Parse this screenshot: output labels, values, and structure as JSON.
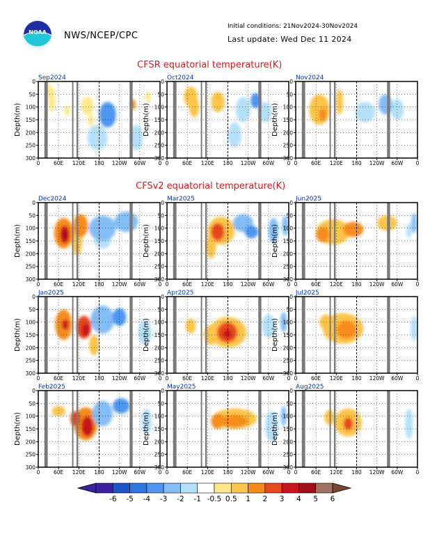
{
  "header": {
    "org": "NWS/NCEP/CPC",
    "logo_text": "NOAA",
    "initial_conditions": "Initial conditions: 21Nov2024-30Nov2024",
    "last_update": "Last update: Wed Dec 11 2024"
  },
  "sections": [
    {
      "title": "CFSR equatorial temperature(K)"
    },
    {
      "title": "CFSv2 equatorial temperature(K)"
    }
  ],
  "colors": {
    "land_mask": "#7a7a7a",
    "title_red": "#d7191c",
    "panel_title_blue": "#0033cc"
  },
  "chart_data": {
    "type": "heatmap",
    "ylabel": "Depth(m)",
    "x_ticks": [
      "0",
      "60E",
      "120E",
      "180",
      "120W",
      "60W",
      "0"
    ],
    "y_ticks": [
      "0",
      "50",
      "100",
      "150",
      "200",
      "250",
      "300"
    ],
    "xlim_deg": [
      0,
      360
    ],
    "ylim": [
      300,
      0
    ],
    "grid": true,
    "dateline_dashed": true,
    "land_mask_lon_ranges": [
      [
        18,
        28
      ],
      [
        100,
        104
      ],
      [
        113,
        118
      ],
      [
        270,
        279
      ]
    ],
    "colorbar": {
      "labels": [
        "-6",
        "-5",
        "-4",
        "-3",
        "-2",
        "-1",
        "-0.5",
        "0.5",
        "1",
        "2",
        "3",
        "4",
        "5",
        "6"
      ],
      "colors": [
        "#3b1fa0",
        "#1c55c8",
        "#2f74e0",
        "#4d95ef",
        "#82bdf5",
        "#b4e0fa",
        "#ffffff",
        "#ffe88a",
        "#fcc44a",
        "#f58c1a",
        "#e8481c",
        "#c8141c",
        "#a0101a",
        "#a07060"
      ],
      "end_low": "#3b1fa0",
      "end_high": "#7a4630"
    },
    "panels": [
      {
        "label": "Sep2024",
        "blobs": [
          [
            30,
            35,
            8,
            30,
            0.5
          ],
          [
            40,
            70,
            10,
            50,
            0.5
          ],
          [
            85,
            115,
            8,
            20,
            0.5
          ],
          [
            145,
            95,
            18,
            35,
            0.5
          ],
          [
            155,
            150,
            8,
            25,
            0.5
          ],
          [
            205,
            130,
            25,
            50,
            -3
          ],
          [
            205,
            105,
            15,
            20,
            -2
          ],
          [
            175,
            220,
            30,
            50,
            -0.5
          ],
          [
            290,
            220,
            20,
            50,
            -0.5
          ],
          [
            280,
            90,
            8,
            20,
            2
          ],
          [
            325,
            60,
            8,
            20,
            0.5
          ]
        ]
      },
      {
        "label": "Oct2024",
        "blobs": [
          [
            70,
            60,
            20,
            40,
            1
          ],
          [
            80,
            100,
            15,
            40,
            1
          ],
          [
            150,
            80,
            20,
            40,
            1
          ],
          [
            225,
            110,
            22,
            50,
            -1
          ],
          [
            262,
            75,
            15,
            30,
            -3
          ],
          [
            290,
            120,
            20,
            40,
            -1
          ],
          [
            200,
            210,
            20,
            50,
            -0.5
          ]
        ]
      },
      {
        "label": "Nov2024",
        "blobs": [
          [
            70,
            110,
            30,
            60,
            1
          ],
          [
            80,
            130,
            12,
            25,
            2
          ],
          [
            130,
            80,
            10,
            50,
            1
          ],
          [
            205,
            120,
            30,
            40,
            -0.5
          ],
          [
            265,
            90,
            20,
            40,
            -2
          ],
          [
            300,
            110,
            20,
            40,
            -1
          ]
        ]
      },
      {
        "label": "Dec2024",
        "blobs": [
          [
            75,
            120,
            28,
            60,
            2
          ],
          [
            78,
            125,
            14,
            35,
            4
          ],
          [
            80,
            125,
            8,
            18,
            6
          ],
          [
            125,
            90,
            22,
            45,
            2
          ],
          [
            115,
            150,
            15,
            60,
            1
          ],
          [
            190,
            100,
            40,
            50,
            -2
          ],
          [
            260,
            75,
            35,
            40,
            -2
          ],
          [
            190,
            150,
            25,
            30,
            -1
          ]
        ]
      },
      {
        "label": "Mar2025",
        "blobs": [
          [
            160,
            110,
            40,
            55,
            1
          ],
          [
            150,
            115,
            20,
            35,
            3
          ],
          [
            130,
            170,
            15,
            50,
            1
          ],
          [
            225,
            80,
            30,
            35,
            -2
          ],
          [
            250,
            115,
            20,
            25,
            -3
          ],
          [
            315,
            110,
            15,
            50,
            -2
          ],
          [
            350,
            90,
            10,
            40,
            -2
          ]
        ]
      },
      {
        "label": "Jun2025",
        "blobs": [
          [
            110,
            115,
            50,
            50,
            1
          ],
          [
            170,
            105,
            30,
            30,
            2
          ],
          [
            80,
            125,
            20,
            30,
            2
          ],
          [
            270,
            80,
            30,
            30,
            1
          ],
          [
            350,
            80,
            8,
            40,
            -2
          ],
          [
            335,
            110,
            8,
            30,
            -1
          ]
        ]
      },
      {
        "label": "Jan2025",
        "blobs": [
          [
            75,
            110,
            25,
            60,
            2
          ],
          [
            80,
            110,
            10,
            20,
            4
          ],
          [
            135,
            120,
            22,
            45,
            3
          ],
          [
            140,
            130,
            12,
            25,
            4
          ],
          [
            165,
            190,
            15,
            40,
            1
          ],
          [
            190,
            90,
            35,
            55,
            -2
          ],
          [
            240,
            80,
            20,
            35,
            -3
          ],
          [
            315,
            140,
            20,
            50,
            -1
          ]
        ]
      },
      {
        "label": "Apr2025",
        "blobs": [
          [
            180,
            140,
            55,
            60,
            1
          ],
          [
            178,
            140,
            30,
            40,
            3
          ],
          [
            178,
            145,
            12,
            18,
            4
          ],
          [
            130,
            150,
            20,
            40,
            1
          ],
          [
            70,
            115,
            15,
            30,
            1
          ],
          [
            300,
            115,
            20,
            45,
            -1
          ],
          [
            345,
            100,
            10,
            40,
            -2
          ]
        ]
      },
      {
        "label": "Jul2025",
        "blobs": [
          [
            140,
            125,
            60,
            60,
            1
          ],
          [
            150,
            130,
            30,
            35,
            2
          ],
          [
            90,
            100,
            20,
            30,
            1
          ],
          [
            350,
            125,
            10,
            50,
            -1
          ]
        ]
      },
      {
        "label": "Feb2025",
        "blobs": [
          [
            140,
            130,
            35,
            65,
            2
          ],
          [
            145,
            140,
            18,
            40,
            4
          ],
          [
            110,
            110,
            15,
            30,
            3
          ],
          [
            190,
            90,
            30,
            50,
            -2
          ],
          [
            245,
            60,
            25,
            30,
            -3
          ],
          [
            320,
            120,
            15,
            50,
            -1
          ],
          [
            60,
            80,
            20,
            20,
            1
          ]
        ]
      },
      {
        "label": "May2025",
        "blobs": [
          [
            200,
            110,
            65,
            40,
            1
          ],
          [
            200,
            120,
            40,
            25,
            2
          ],
          [
            150,
            120,
            20,
            30,
            2
          ],
          [
            310,
            140,
            20,
            60,
            -1
          ],
          [
            345,
            100,
            8,
            40,
            -2
          ]
        ]
      },
      {
        "label": "Aug2025",
        "blobs": [
          [
            155,
            125,
            40,
            55,
            1
          ],
          [
            155,
            130,
            14,
            25,
            3
          ],
          [
            100,
            105,
            15,
            30,
            1
          ],
          [
            335,
            130,
            12,
            60,
            -1
          ]
        ]
      }
    ]
  }
}
